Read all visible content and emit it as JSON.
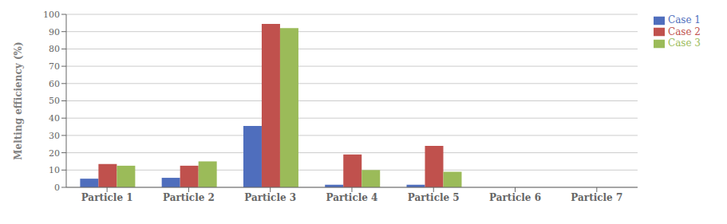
{
  "chart_data": {
    "type": "bar",
    "ylabel": "Melting efficiency (%)",
    "categories": [
      "Particle 1",
      "Particle 2",
      "Particle 3",
      "Particle 4",
      "Particle 5",
      "Particle 6",
      "Particle 7"
    ],
    "series": [
      {
        "name": "Case 1",
        "color": "#4F6EBD",
        "values": [
          5,
          5.5,
          35.5,
          1.5,
          1.5,
          0,
          0
        ]
      },
      {
        "name": "Case 2",
        "color": "#C0514D",
        "values": [
          13.5,
          12.5,
          94.5,
          19,
          24,
          0,
          0
        ]
      },
      {
        "name": "Case 3",
        "color": "#9BBB59",
        "values": [
          12.5,
          15,
          92,
          10,
          9,
          0,
          0
        ]
      }
    ],
    "ylim": [
      0,
      100
    ],
    "yticks": [
      0,
      10,
      20,
      30,
      40,
      50,
      60,
      70,
      80,
      90,
      100
    ],
    "grid": true,
    "legend": "right"
  }
}
